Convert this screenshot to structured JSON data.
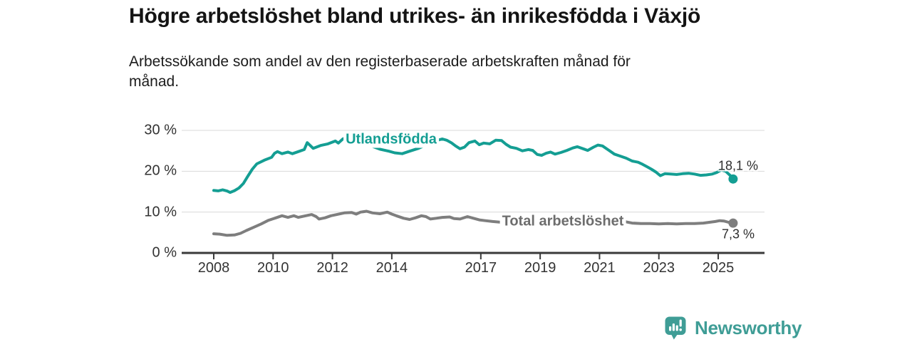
{
  "header": {
    "title": "Högre arbetslöshet bland utrikes- än inrikesfödda i Växjö",
    "subtitle_lines": [
      "Arbetssökande som andel av den registerbaserade arbetskraften månad för",
      "månad."
    ]
  },
  "footer": {
    "brand": "Newsworthy"
  },
  "colors": {
    "accent_teal": "#149e93",
    "line_gray": "#7e7e7e",
    "axis": "#3a3a3a",
    "grid": "#d9d9d9",
    "text_dark": "#141414",
    "logo_teal": "#3f9d96"
  },
  "chart_data": {
    "type": "line",
    "title": "Högre arbetslöshet bland utrikes- än inrikesfödda i Växjö",
    "subtitle": "Arbetssökande som andel av den registerbaserade arbetskraften månad för månad.",
    "xlabel": "",
    "ylabel": "",
    "xlim": [
      2006.92,
      2026.56
    ],
    "ylim": [
      0,
      30
    ],
    "x_ticks": [
      2008,
      2010,
      2012,
      2014,
      2017,
      2019,
      2021,
      2023,
      2025
    ],
    "y_ticks": [
      0,
      10,
      20,
      30
    ],
    "y_tick_suffix": " %",
    "grid": "horizontal",
    "legend_position": "inline-labels",
    "series": [
      {
        "id": "utlandsfodda",
        "name": "Utlandsfödda",
        "color": "#149e93",
        "end_value": 18.1,
        "end_label": "18,1 %",
        "points": [
          [
            2008.0,
            15.3
          ],
          [
            2008.15,
            15.2
          ],
          [
            2008.3,
            15.45
          ],
          [
            2008.45,
            15.15
          ],
          [
            2008.55,
            14.8
          ],
          [
            2008.7,
            15.25
          ],
          [
            2008.85,
            15.9
          ],
          [
            2009.0,
            17.0
          ],
          [
            2009.15,
            18.8
          ],
          [
            2009.3,
            20.5
          ],
          [
            2009.45,
            21.8
          ],
          [
            2009.7,
            22.7
          ],
          [
            2009.95,
            23.4
          ],
          [
            2010.05,
            24.4
          ],
          [
            2010.15,
            24.8
          ],
          [
            2010.3,
            24.3
          ],
          [
            2010.5,
            24.7
          ],
          [
            2010.65,
            24.3
          ],
          [
            2010.85,
            24.8
          ],
          [
            2011.05,
            25.3
          ],
          [
            2011.15,
            27.0
          ],
          [
            2011.35,
            25.6
          ],
          [
            2011.6,
            26.3
          ],
          [
            2011.85,
            26.7
          ],
          [
            2012.1,
            27.4
          ],
          [
            2012.2,
            26.9
          ],
          [
            2012.35,
            27.9
          ],
          [
            2012.45,
            28.2
          ],
          [
            2012.7,
            27.6
          ],
          [
            2013.0,
            27.0
          ],
          [
            2013.3,
            26.2
          ],
          [
            2013.6,
            25.4
          ],
          [
            2013.9,
            24.9
          ],
          [
            2014.1,
            24.5
          ],
          [
            2014.35,
            24.3
          ],
          [
            2014.6,
            24.9
          ],
          [
            2014.9,
            25.6
          ],
          [
            2015.2,
            26.6
          ],
          [
            2015.45,
            27.4
          ],
          [
            2015.7,
            27.9
          ],
          [
            2015.85,
            27.6
          ],
          [
            2016.0,
            27.0
          ],
          [
            2016.15,
            26.2
          ],
          [
            2016.3,
            25.5
          ],
          [
            2016.45,
            25.9
          ],
          [
            2016.6,
            27.0
          ],
          [
            2016.8,
            27.4
          ],
          [
            2016.95,
            26.5
          ],
          [
            2017.1,
            26.9
          ],
          [
            2017.3,
            26.7
          ],
          [
            2017.5,
            27.6
          ],
          [
            2017.7,
            27.5
          ],
          [
            2017.85,
            26.6
          ],
          [
            2018.0,
            25.9
          ],
          [
            2018.2,
            25.6
          ],
          [
            2018.4,
            25.0
          ],
          [
            2018.6,
            25.3
          ],
          [
            2018.75,
            25.1
          ],
          [
            2018.9,
            24.1
          ],
          [
            2019.05,
            23.9
          ],
          [
            2019.2,
            24.4
          ],
          [
            2019.35,
            24.7
          ],
          [
            2019.5,
            24.2
          ],
          [
            2019.7,
            24.6
          ],
          [
            2019.9,
            25.1
          ],
          [
            2020.1,
            25.7
          ],
          [
            2020.25,
            26.0
          ],
          [
            2020.45,
            25.5
          ],
          [
            2020.6,
            25.1
          ],
          [
            2020.8,
            25.9
          ],
          [
            2020.95,
            26.4
          ],
          [
            2021.1,
            26.2
          ],
          [
            2021.3,
            25.2
          ],
          [
            2021.5,
            24.2
          ],
          [
            2021.7,
            23.7
          ],
          [
            2021.9,
            23.2
          ],
          [
            2022.1,
            22.5
          ],
          [
            2022.3,
            22.2
          ],
          [
            2022.45,
            21.7
          ],
          [
            2022.6,
            21.1
          ],
          [
            2022.75,
            20.5
          ],
          [
            2022.9,
            19.8
          ],
          [
            2023.05,
            18.9
          ],
          [
            2023.2,
            19.4
          ],
          [
            2023.4,
            19.3
          ],
          [
            2023.6,
            19.2
          ],
          [
            2023.8,
            19.4
          ],
          [
            2024.0,
            19.5
          ],
          [
            2024.2,
            19.3
          ],
          [
            2024.4,
            19.0
          ],
          [
            2024.6,
            19.1
          ],
          [
            2024.8,
            19.3
          ],
          [
            2024.95,
            19.7
          ],
          [
            2025.1,
            20.3
          ],
          [
            2025.25,
            20.0
          ],
          [
            2025.4,
            19.0
          ],
          [
            2025.5,
            18.1
          ]
        ]
      },
      {
        "id": "total",
        "name": "Total arbetslöshet",
        "color": "#7e7e7e",
        "end_value": 7.3,
        "end_label": "7,3 %",
        "points": [
          [
            2008.0,
            4.7
          ],
          [
            2008.2,
            4.6
          ],
          [
            2008.45,
            4.3
          ],
          [
            2008.7,
            4.4
          ],
          [
            2008.9,
            4.8
          ],
          [
            2009.1,
            5.5
          ],
          [
            2009.35,
            6.3
          ],
          [
            2009.6,
            7.1
          ],
          [
            2009.85,
            8.0
          ],
          [
            2010.1,
            8.6
          ],
          [
            2010.3,
            9.1
          ],
          [
            2010.5,
            8.7
          ],
          [
            2010.7,
            9.1
          ],
          [
            2010.85,
            8.7
          ],
          [
            2011.1,
            9.1
          ],
          [
            2011.3,
            9.4
          ],
          [
            2011.45,
            8.9
          ],
          [
            2011.55,
            8.3
          ],
          [
            2011.75,
            8.6
          ],
          [
            2011.95,
            9.1
          ],
          [
            2012.15,
            9.4
          ],
          [
            2012.4,
            9.8
          ],
          [
            2012.65,
            9.9
          ],
          [
            2012.8,
            9.5
          ],
          [
            2012.95,
            10.0
          ],
          [
            2013.15,
            10.2
          ],
          [
            2013.35,
            9.8
          ],
          [
            2013.6,
            9.6
          ],
          [
            2013.85,
            10.0
          ],
          [
            2014.0,
            9.5
          ],
          [
            2014.15,
            9.1
          ],
          [
            2014.4,
            8.5
          ],
          [
            2014.6,
            8.2
          ],
          [
            2014.8,
            8.6
          ],
          [
            2015.0,
            9.1
          ],
          [
            2015.15,
            8.9
          ],
          [
            2015.3,
            8.3
          ],
          [
            2015.5,
            8.5
          ],
          [
            2015.7,
            8.7
          ],
          [
            2015.95,
            8.8
          ],
          [
            2016.1,
            8.4
          ],
          [
            2016.3,
            8.3
          ],
          [
            2016.55,
            8.9
          ],
          [
            2016.75,
            8.5
          ],
          [
            2016.95,
            8.1
          ],
          [
            2017.15,
            7.9
          ],
          [
            2017.4,
            7.7
          ],
          [
            2017.7,
            7.5
          ],
          [
            2018.0,
            7.4
          ],
          [
            2018.4,
            7.2
          ],
          [
            2018.8,
            7.1
          ],
          [
            2019.2,
            7.0
          ],
          [
            2019.6,
            7.1
          ],
          [
            2020.0,
            7.6
          ],
          [
            2020.4,
            8.4
          ],
          [
            2020.7,
            8.6
          ],
          [
            2021.0,
            8.5
          ],
          [
            2021.3,
            8.2
          ],
          [
            2021.6,
            7.9
          ],
          [
            2021.9,
            7.6
          ],
          [
            2022.1,
            7.3
          ],
          [
            2022.4,
            7.2
          ],
          [
            2022.7,
            7.2
          ],
          [
            2023.0,
            7.1
          ],
          [
            2023.3,
            7.2
          ],
          [
            2023.6,
            7.1
          ],
          [
            2023.9,
            7.2
          ],
          [
            2024.2,
            7.2
          ],
          [
            2024.5,
            7.3
          ],
          [
            2024.7,
            7.5
          ],
          [
            2024.9,
            7.7
          ],
          [
            2025.05,
            7.9
          ],
          [
            2025.2,
            7.8
          ],
          [
            2025.35,
            7.5
          ],
          [
            2025.5,
            7.3
          ]
        ]
      }
    ]
  }
}
